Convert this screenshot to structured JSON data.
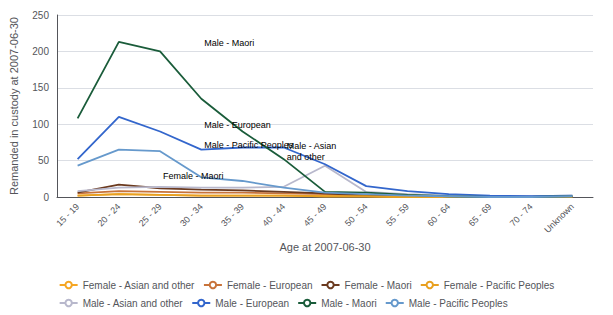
{
  "chart_data": {
    "type": "line",
    "xlabel": "Age at 2007-06-30",
    "ylabel": "Remanded in custody at 2007-06-30",
    "categories": [
      "15 - 19",
      "20 - 24",
      "25 - 29",
      "30 - 34",
      "35 - 39",
      "40 - 44",
      "45 - 49",
      "50 - 54",
      "55 - 59",
      "60 - 64",
      "65 - 69",
      "70 - 74",
      "Unknown"
    ],
    "series": [
      {
        "name": "Female - Asian and other",
        "color": "#f5a623",
        "values": [
          2,
          4,
          3,
          2,
          2,
          2,
          1,
          1,
          0,
          0,
          0,
          0,
          0
        ]
      },
      {
        "name": "Female - European",
        "color": "#c8733a",
        "values": [
          5,
          8,
          7,
          6,
          6,
          5,
          4,
          2,
          1,
          1,
          0,
          0,
          0
        ]
      },
      {
        "name": "Female - Maori",
        "color": "#6b3a1f",
        "values": [
          6,
          17,
          12,
          10,
          9,
          7,
          5,
          2,
          1,
          0,
          0,
          0,
          0
        ]
      },
      {
        "name": "Female - Pacific Peoples",
        "color": "#e8a020",
        "values": [
          2,
          4,
          3,
          2,
          2,
          2,
          1,
          1,
          0,
          0,
          0,
          0,
          0
        ]
      },
      {
        "name": "Male - Asian and other",
        "color": "#b8b8cc",
        "values": [
          8,
          13,
          14,
          13,
          13,
          14,
          43,
          7,
          4,
          2,
          1,
          1,
          2
        ]
      },
      {
        "name": "Male - European",
        "color": "#3366cc",
        "values": [
          52,
          110,
          90,
          65,
          68,
          68,
          45,
          15,
          8,
          4,
          2,
          1,
          2
        ]
      },
      {
        "name": "Male - Maori",
        "color": "#1a5c3a",
        "values": [
          108,
          213,
          200,
          135,
          90,
          52,
          7,
          6,
          3,
          1,
          0,
          0,
          1
        ]
      },
      {
        "name": "Male - Pacific Peoples",
        "color": "#6699cc",
        "values": [
          43,
          65,
          63,
          27,
          22,
          13,
          6,
          4,
          2,
          1,
          0,
          0,
          1
        ]
      }
    ],
    "annotations": [
      {
        "text": "Male - Maori",
        "x": "30 - 34",
        "y": 200
      },
      {
        "text": "Male - European",
        "x": "30 - 34",
        "y": 87
      },
      {
        "text": "Male - Pacific Peoples",
        "x": "30 - 34",
        "y": 60
      },
      {
        "text": "Male - Asian\nand other",
        "x": "40 - 44",
        "y": 43
      },
      {
        "text": "Female - Maori",
        "x": "25 - 29",
        "y": 17
      }
    ],
    "ylim": [
      0,
      250
    ],
    "yticks": [
      0,
      50,
      100,
      150,
      200,
      250
    ],
    "grid": true,
    "legend": "bottom"
  }
}
